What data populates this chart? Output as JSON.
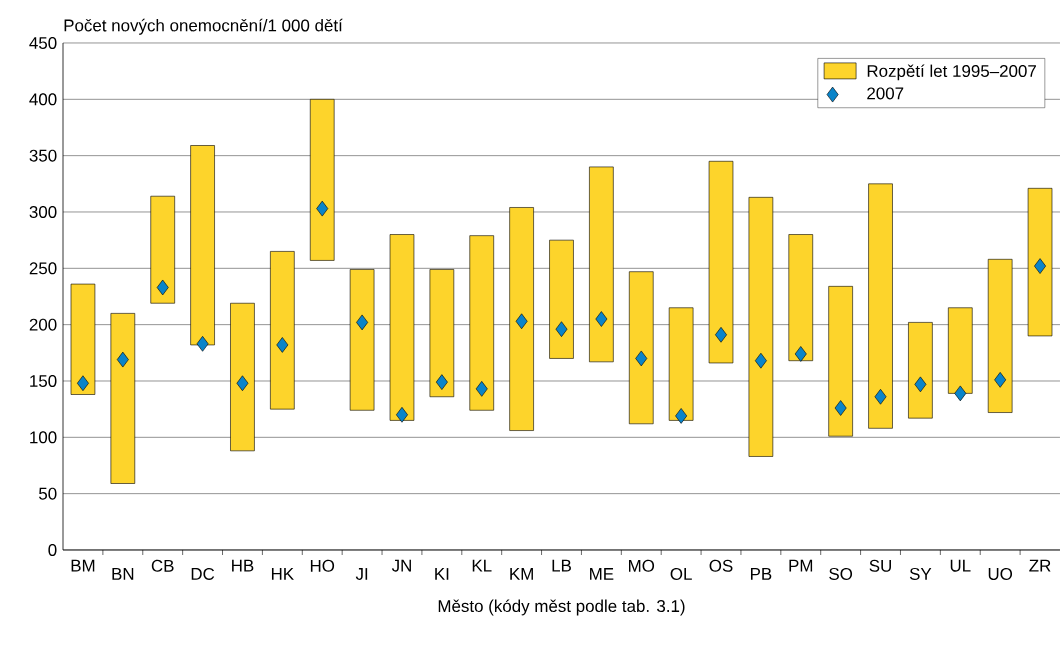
{
  "chart_data": {
    "type": "bar",
    "xlabel": "Město (kódy měst podle tab. 3.1)",
    "ylabel": "Počet nových onemocnění/1 000 dětí",
    "categories": [
      "BM",
      "BN",
      "CB",
      "DC",
      "HB",
      "HK",
      "HO",
      "JI",
      "JN",
      "KI",
      "KL",
      "KM",
      "LB",
      "ME",
      "MO",
      "OL",
      "OS",
      "PB",
      "PM",
      "SO",
      "SU",
      "SY",
      "UL",
      "UO",
      "ZR"
    ],
    "series": [
      {
        "name": "Rozpětí let 1995–2007",
        "type": "bar",
        "color": "#fdd42b",
        "base": [
          138,
          59,
          219,
          182,
          88,
          125,
          257,
          124,
          115,
          136,
          124,
          106,
          170,
          167,
          112,
          115,
          166,
          83,
          168,
          101,
          108,
          117,
          139,
          122,
          190
        ],
        "values": [
          98,
          151,
          95,
          177,
          131,
          140,
          143,
          125,
          165,
          113,
          155,
          198,
          105,
          173,
          135,
          100,
          179,
          230,
          112,
          133,
          217,
          85,
          76,
          136,
          131
        ]
      },
      {
        "name": "2007",
        "type": "scatter",
        "marker": "diamond",
        "color": "#0a84c9",
        "values": [
          148,
          169,
          233,
          183,
          148,
          182,
          303,
          202,
          120,
          149,
          143,
          203,
          196,
          205,
          170,
          119,
          191,
          168,
          174,
          126,
          136,
          147,
          139,
          151,
          252
        ]
      }
    ],
    "ylim": [
      0,
      450
    ],
    "yticks": [
      0,
      50,
      100,
      150,
      200,
      250,
      300,
      350,
      400,
      450
    ],
    "grid": "y",
    "legend": "top right"
  }
}
